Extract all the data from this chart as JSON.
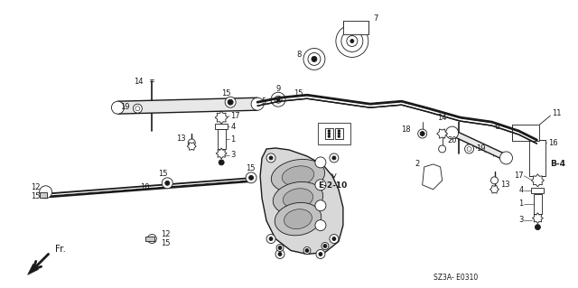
{
  "bg_color": "#ffffff",
  "diagram_color": "#1a1a1a",
  "fig_width": 6.4,
  "fig_height": 3.19,
  "dpi": 100,
  "labels": {
    "e210": "E-2-10",
    "b4": "B-4",
    "sz3a": "SZ3A- E0310",
    "fr": "Fr."
  }
}
